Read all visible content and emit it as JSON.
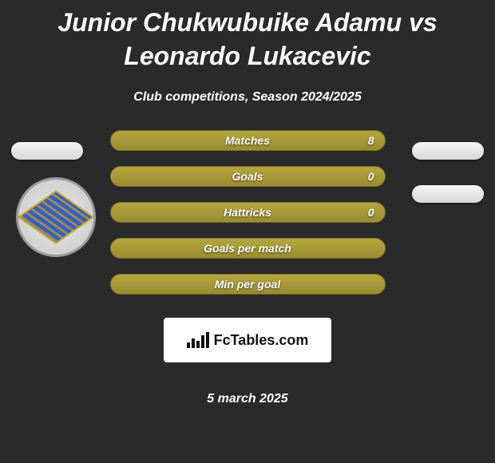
{
  "title": "Junior Chukwubuike Adamu vs Leonardo Lukacevic",
  "subtitle": "Club competitions, Season 2024/2025",
  "stats": [
    {
      "label": "Matches",
      "value": "8"
    },
    {
      "label": "Goals",
      "value": "0"
    },
    {
      "label": "Hattricks",
      "value": "0"
    },
    {
      "label": "Goals per match",
      "value": ""
    },
    {
      "label": "Min per goal",
      "value": ""
    }
  ],
  "colors": {
    "background": "#2a2a2a",
    "bar_top": "#b5a640",
    "bar_bottom": "#9a8c30",
    "bar_border": "#7a6f25",
    "pill_top": "#f5f5f5",
    "pill_bottom": "#d8d8d8",
    "badge_blue": "#3a5fb5",
    "badge_gold": "#d4a82a",
    "text": "#ffffff"
  },
  "branding": {
    "name": "FcTables.com"
  },
  "date": "5 march 2025"
}
